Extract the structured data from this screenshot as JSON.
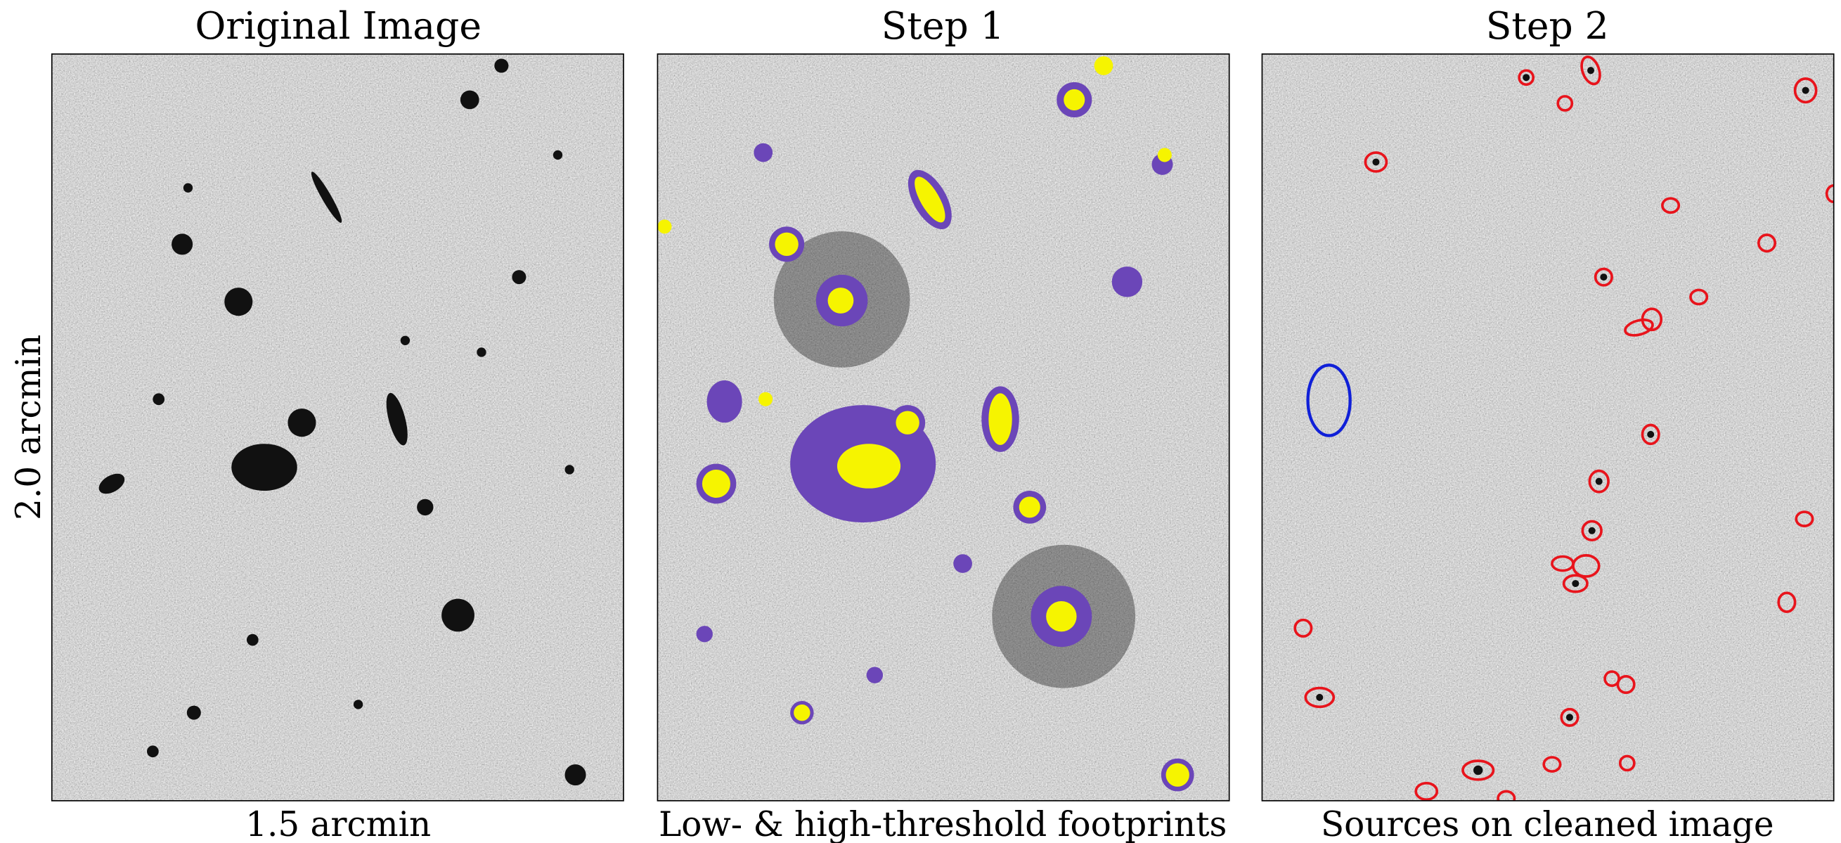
{
  "panels": [
    {
      "title": "Original Image",
      "xlabel": "1.5 arcmin",
      "ylabel": "2.0 arcmin"
    },
    {
      "title": "Step 1",
      "xlabel": "Low- & high-threshold footprints"
    },
    {
      "title": "Step 2",
      "xlabel": "Sources on cleaned image"
    }
  ]
}
